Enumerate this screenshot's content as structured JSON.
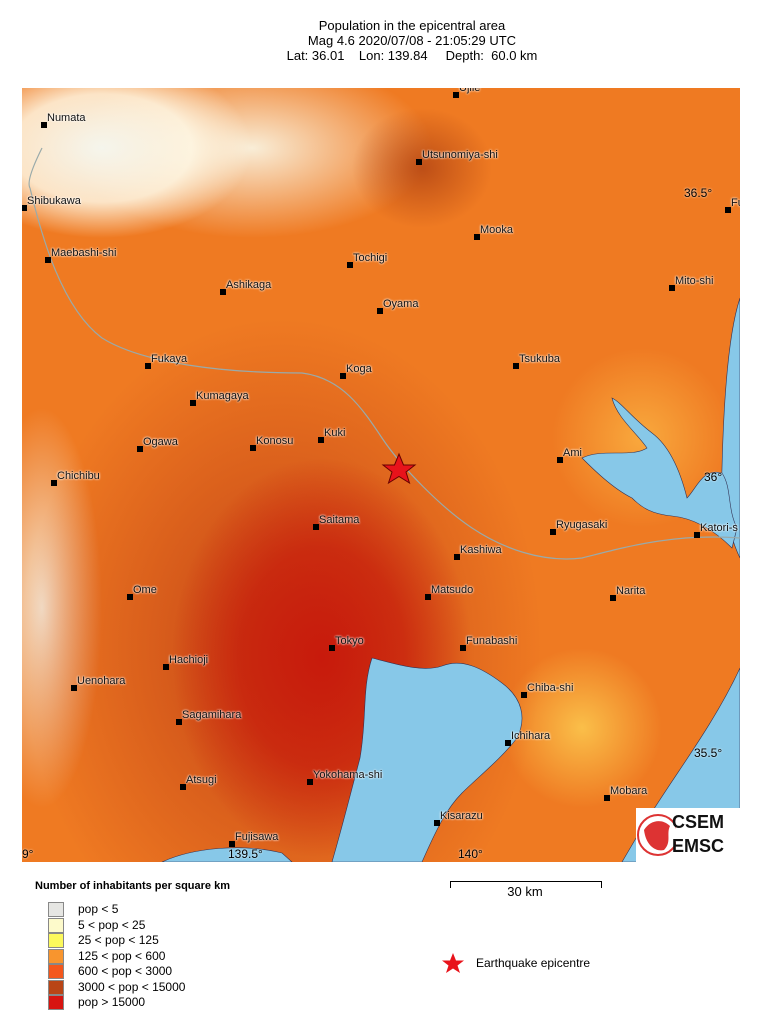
{
  "header": {
    "title": "Population in the epicentral area",
    "line2": "Mag 4.6  2020/07/08 - 21:05:29 UTC",
    "line3": "Lat: 36.01    Lon: 139.84     Depth:  60.0 km"
  },
  "map": {
    "cities": [
      "Ujiie",
      "Numata",
      "Utsunomiya-shi",
      "Shibukawa",
      "Fu",
      "Mooka",
      "Maebashi-shi",
      "Tochigi",
      "Mito-shi",
      "Ashikaga",
      "Oyama",
      "Tsukuba",
      "Fukaya",
      "Koga",
      "Kumagaya",
      "Kuki",
      "Konosu",
      "Ogawa",
      "Ami",
      "Chichibu",
      "Saitama",
      "Ryugasaki",
      "Katori-s",
      "Kashiwa",
      "Ome",
      "Matsudo",
      "Narita",
      "Tokyo",
      "Funabashi",
      "Hachioji",
      "Uenohara",
      "Chiba-shi",
      "Sagamihara",
      "Ichihara",
      "Atsugi",
      "Yokohama-shi",
      "Mobara",
      "Kisarazu",
      "Fujisawa"
    ],
    "lat_labels": [
      "36.5°",
      "36°",
      "35.5°"
    ],
    "lon_labels": [
      "9°",
      "139.5°",
      "140°"
    ],
    "epicentre_color": "#e8131b",
    "water_color": "#87c8e8"
  },
  "logo": {
    "text1": "CSEM",
    "text2": "EMSC"
  },
  "legend": {
    "title": "Number of inhabitants per square km",
    "items": [
      {
        "label": "pop < 5",
        "color": "#e6e6e3"
      },
      {
        "label": "5 < pop < 25",
        "color": "#fdfacb"
      },
      {
        "label": "25 < pop < 125",
        "color": "#fcf95c"
      },
      {
        "label": "125 < pop < 600",
        "color": "#f8952e"
      },
      {
        "label": "600 < pop < 3000",
        "color": "#f4571c"
      },
      {
        "label": "3000 < pop < 15000",
        "color": "#b94516"
      },
      {
        "label": "pop > 15000",
        "color": "#d71410"
      }
    ],
    "epicentre_label": "Earthquake epicentre"
  },
  "scale": {
    "label": "30 km"
  }
}
